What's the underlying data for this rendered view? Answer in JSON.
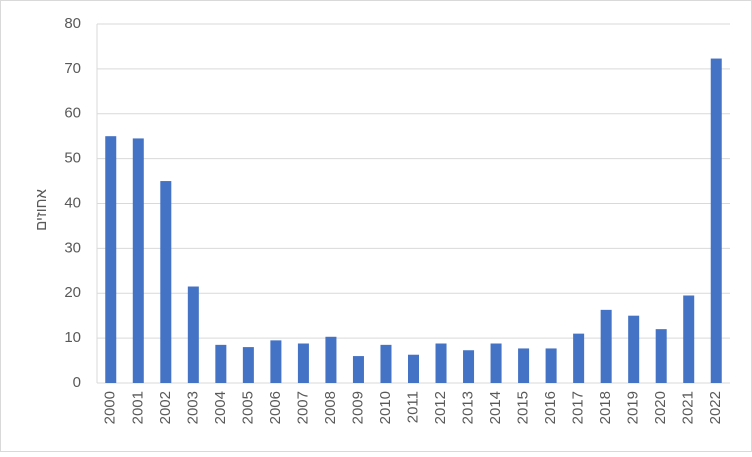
{
  "chart_data": {
    "type": "bar",
    "y_label": "אחוזים",
    "categories": [
      "2000",
      "2001",
      "2002",
      "2003",
      "2004",
      "2005",
      "2006",
      "2007",
      "2008",
      "2009",
      "2010",
      "2011",
      "2012",
      "2013",
      "2014",
      "2015",
      "2016",
      "2017",
      "2018",
      "2019",
      "2020",
      "2021",
      "2022"
    ],
    "values": [
      55,
      54.5,
      45,
      21.5,
      8.5,
      8,
      9.5,
      8.8,
      10.3,
      6,
      8.5,
      6.3,
      8.8,
      7.3,
      8.8,
      7.7,
      7.7,
      11,
      16.3,
      15,
      12,
      19.5,
      72.3
    ],
    "color": "#4472c4",
    "ylim": [
      0,
      80
    ],
    "yticks": [
      0,
      10,
      20,
      30,
      40,
      50,
      60,
      70,
      80
    ],
    "grid": true
  }
}
